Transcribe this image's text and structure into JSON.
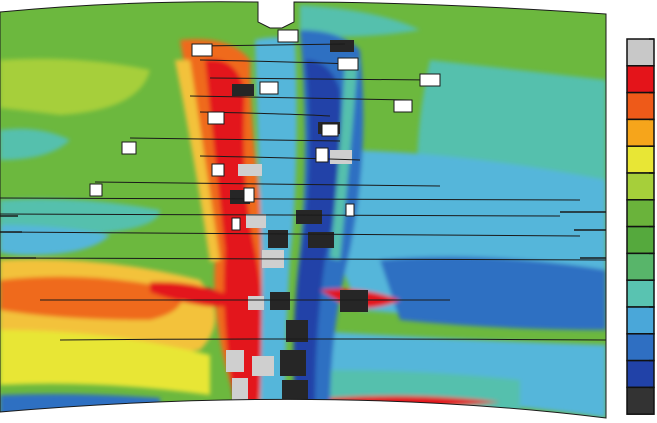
{
  "figure": {
    "kind": "finite-element stress contour of an arched masonry section",
    "notch_at_crown": true,
    "background": "#ffffff",
    "outline_color": "#1a1a1a"
  },
  "legend": {
    "title": "",
    "labels": [],
    "levels_top_to_bottom": [
      "#c8c8c8",
      "#e4141a",
      "#ee5a19",
      "#f6a51b",
      "#e8e635",
      "#a6cf3a",
      "#6ab33b",
      "#55a93d",
      "#58b56a",
      "#59c3b1",
      "#4aa7d9",
      "#2f6fc2",
      "#2142a8",
      "#333333"
    ]
  },
  "contour_palette": {
    "background_green": "#6cb83e",
    "teal": "#55c0ad",
    "cyan": "#54b6da",
    "blue": "#2f6fc2",
    "navy": "#2142a8",
    "red": "#e3171a",
    "orange": "#ef6a1f",
    "yellow": "#f3c23a",
    "light_grey": "#cfcfcf",
    "dark": "#262626",
    "crack_white": "#ffffff"
  },
  "crack_mortar_joints": 14,
  "open_joint_blocks": 22
}
